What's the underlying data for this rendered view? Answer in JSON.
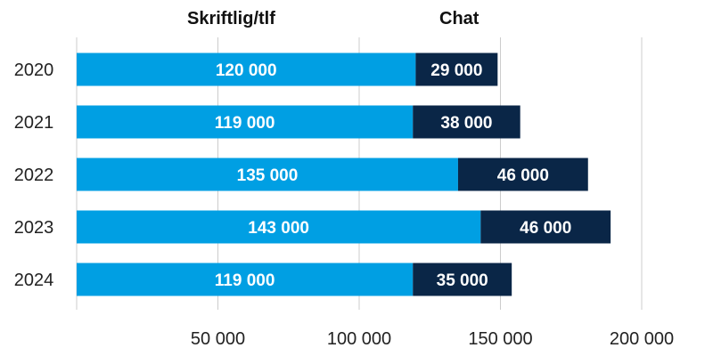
{
  "chart_data": {
    "type": "bar",
    "orientation": "horizontal",
    "stacked": true,
    "categories": [
      "2020",
      "2021",
      "2022",
      "2023",
      "2024"
    ],
    "series": [
      {
        "name": "Skriftlig/tlf",
        "color": "#009fe3",
        "values": [
          120000,
          119000,
          135000,
          143000,
          119000
        ],
        "labels": [
          "120 000",
          "119 000",
          "135 000",
          "143 000",
          "119 000"
        ]
      },
      {
        "name": "Chat",
        "color": "#0a2647",
        "values": [
          29000,
          38000,
          46000,
          46000,
          35000
        ],
        "labels": [
          "29 000",
          "38 000",
          "46 000",
          "46 000",
          "35 000"
        ]
      }
    ],
    "xlim": [
      0,
      200000
    ],
    "xticks": [
      {
        "value": 50000,
        "label": "50 000"
      },
      {
        "value": 100000,
        "label": "100 000"
      },
      {
        "value": 150000,
        "label": "150 000"
      },
      {
        "value": 200000,
        "label": "200 000"
      }
    ],
    "grid": true,
    "legend_position": "top"
  }
}
